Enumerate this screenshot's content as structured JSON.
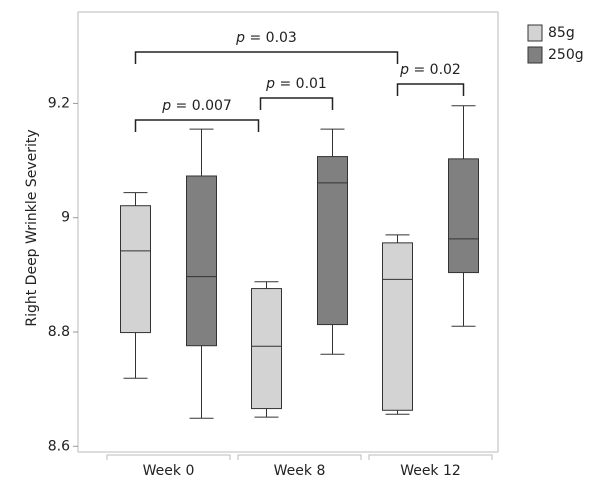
{
  "chart_data": {
    "type": "box",
    "y_label": "Right Deep Wrinkle Severity",
    "categories": [
      "Week 0",
      "Week 8",
      "Week 12"
    ],
    "series": [
      {
        "name": "85g",
        "color": "#d3d3d3",
        "values": [
          {
            "min": 8.719,
            "q1": 8.799,
            "median": 8.942,
            "q3": 9.021,
            "max": 9.044
          },
          {
            "min": 8.651,
            "q1": 8.666,
            "median": 8.775,
            "q3": 8.876,
            "max": 8.888
          },
          {
            "min": 8.656,
            "q1": 8.663,
            "median": 8.892,
            "q3": 8.956,
            "max": 8.97
          }
        ]
      },
      {
        "name": "250g",
        "color": "#808080",
        "values": [
          {
            "min": 8.649,
            "q1": 8.776,
            "median": 8.897,
            "q3": 9.073,
            "max": 9.155
          },
          {
            "min": 8.761,
            "q1": 8.813,
            "median": 9.061,
            "q3": 9.107,
            "max": 9.155
          },
          {
            "min": 8.81,
            "q1": 8.904,
            "median": 8.963,
            "q3": 9.103,
            "max": 9.196
          }
        ]
      }
    ],
    "ylim": [
      8.59,
      9.36
    ],
    "yticks": [
      8.6,
      8.8,
      9,
      9.2
    ],
    "annotations": [
      "p = 0.03",
      "p = 0.007",
      "p = 0.01",
      "p = 0.02"
    ],
    "legend": "top-right-outside"
  }
}
